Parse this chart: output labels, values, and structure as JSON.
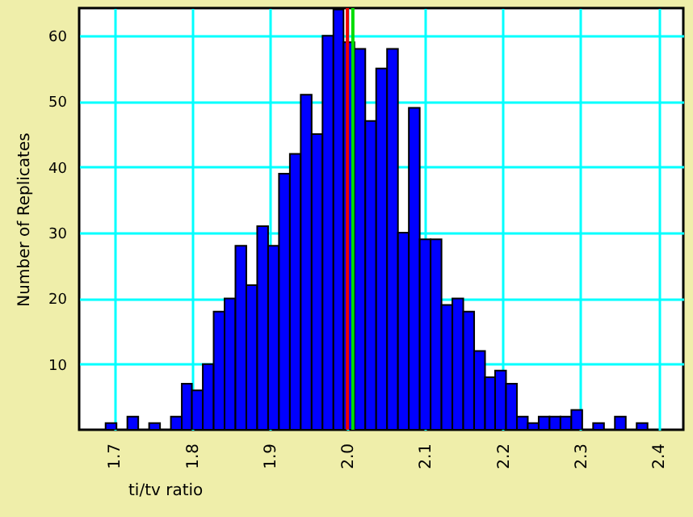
{
  "chart_data": {
    "type": "histogram",
    "xlabel": "ti/tv ratio",
    "ylabel": "Number of Replicates",
    "color": "#0000ff",
    "bins": [
      1.689,
      1.703,
      1.717,
      1.731,
      1.745,
      1.759,
      1.773,
      1.787,
      1.8,
      1.814,
      1.828,
      1.842,
      1.856,
      1.87,
      1.884,
      1.898,
      1.912,
      1.926,
      1.94,
      1.954,
      1.968,
      1.982,
      1.995,
      2.009,
      2.023,
      2.037,
      2.051,
      2.065,
      2.079,
      2.093,
      2.107,
      2.121,
      2.135,
      2.149,
      2.163,
      2.177,
      2.19,
      2.204,
      2.218,
      2.232,
      2.246,
      2.26,
      2.274,
      2.288,
      2.302,
      2.316,
      2.33,
      2.344,
      2.358,
      2.372,
      2.386
    ],
    "values": [
      1,
      0,
      2,
      0,
      1,
      0,
      2,
      7,
      6,
      10,
      18,
      20,
      28,
      22,
      31,
      28,
      39,
      42,
      51,
      45,
      60,
      64,
      59,
      58,
      47,
      55,
      58,
      30,
      49,
      29,
      29,
      19,
      20,
      18,
      12,
      8,
      9,
      7,
      2,
      1,
      2,
      2,
      2,
      3,
      0,
      1,
      0,
      2,
      0,
      1
    ],
    "xlim": [
      1.655,
      2.432
    ],
    "xticks": [
      1.7,
      1.8,
      1.9,
      {
        "value": 2,
        "label": "2.0"
      },
      2.1,
      2.2,
      2.3,
      2.4
    ],
    "ylim": [
      0,
      64.2
    ],
    "yticks": [
      10,
      20,
      30,
      40,
      50,
      60
    ],
    "grid": true,
    "ref_lines": [
      {
        "axis": "x",
        "value": 2.007,
        "color": "#00dd00"
      },
      {
        "axis": "x",
        "value": 2.0,
        "color": "#ee0000"
      }
    ]
  }
}
